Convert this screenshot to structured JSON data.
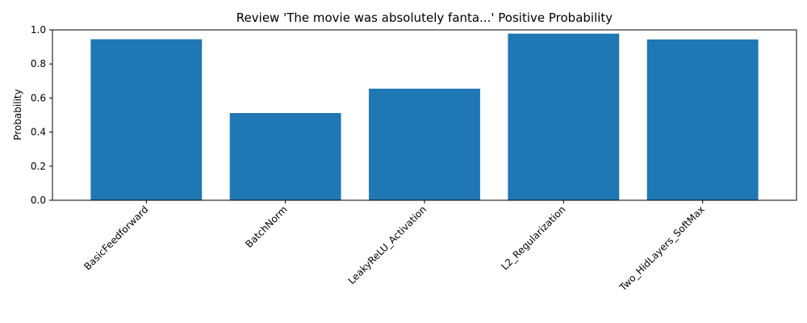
{
  "chart_data": {
    "type": "bar",
    "title": "Review 'The movie was absolutely fanta...' Positive Probability",
    "xlabel": "",
    "ylabel": "Probability",
    "categories": [
      "BasicFeedforward",
      "BatchNorm",
      "LeakyReLU_Activation",
      "L2_Regularization",
      "Two_HidLayers_SoftMax"
    ],
    "values": [
      0.945,
      0.512,
      0.655,
      0.978,
      0.944
    ],
    "ylim": [
      0,
      1.0
    ],
    "yticks": [
      "0.0",
      "0.2",
      "0.4",
      "0.6",
      "0.8",
      "1.0"
    ],
    "bar_color": "#1f77b4",
    "grid": false,
    "legend": "none"
  }
}
